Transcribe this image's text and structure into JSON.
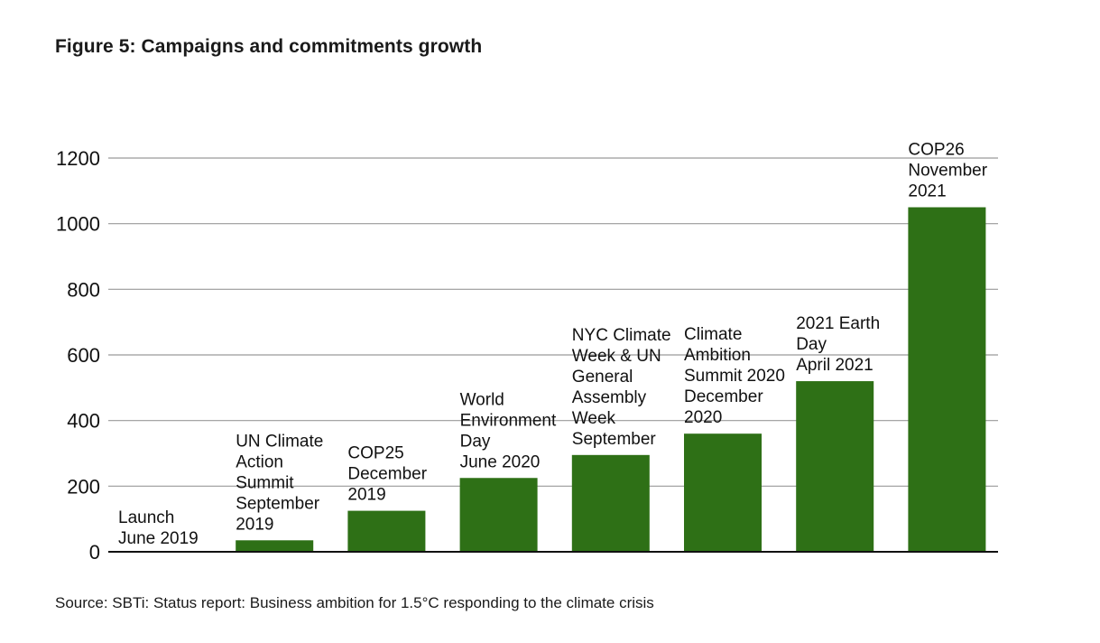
{
  "title": "Figure 5: Campaigns and commitments growth",
  "source": "Source: SBTi: Status report: Business ambition for 1.5°C responding to the climate crisis",
  "colors": {
    "bar": "#2e7016",
    "grid": "#9a9a9a",
    "axis": "#111111"
  },
  "chart_data": {
    "type": "bar",
    "title": "Figure 5: Campaigns and commitments growth",
    "xlabel": "",
    "ylabel": "",
    "ylim": [
      0,
      1200
    ],
    "yticks": [
      0,
      200,
      400,
      600,
      800,
      1000,
      1200
    ],
    "grid": true,
    "legend": "none",
    "categories": [
      [
        "Launch",
        "June 2019"
      ],
      [
        "UN Climate",
        "Action",
        "Summit",
        "September",
        "2019"
      ],
      [
        "COP25",
        "December",
        "2019"
      ],
      [
        "World",
        "Environment",
        "Day",
        "June 2020"
      ],
      [
        "NYC Climate",
        "Week & UN",
        "General",
        "Assembly",
        "Week",
        "September"
      ],
      [
        "Climate",
        "Ambition",
        "Summit 2020",
        "December",
        "2020"
      ],
      [
        "2021 Earth",
        "Day",
        "April 2021"
      ],
      [
        "COP26",
        "November",
        "2021"
      ]
    ],
    "values": [
      0,
      35,
      125,
      225,
      295,
      360,
      520,
      1050
    ]
  }
}
